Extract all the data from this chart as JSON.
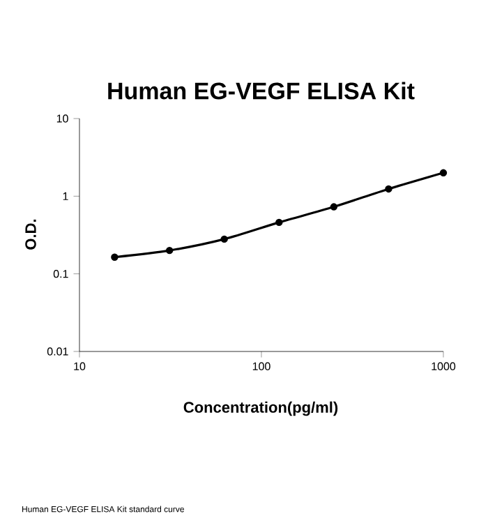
{
  "chart_data": {
    "type": "line",
    "title": "Human EG-VEGF ELISA Kit",
    "xlabel": "Concentration(pg/ml)",
    "ylabel": "O.D.",
    "annotations": [
      "Human EG-VEGF ELISA Kit standard curve"
    ],
    "log": "xy",
    "xlim": [
      10,
      1000
    ],
    "ylim": [
      0.01,
      10
    ],
    "xticks": [
      10,
      100,
      1000
    ],
    "yticks": [
      0.01,
      0.1,
      1,
      10
    ],
    "marker": "circle",
    "line_style": "solid",
    "grid": false,
    "series": [
      {
        "color": "#000000",
        "x": [
          15.6,
          31.25,
          62.5,
          125,
          250,
          500,
          1000
        ],
        "values": [
          0.164,
          0.2,
          0.28,
          0.46,
          0.73,
          1.24,
          2.0
        ]
      }
    ]
  }
}
